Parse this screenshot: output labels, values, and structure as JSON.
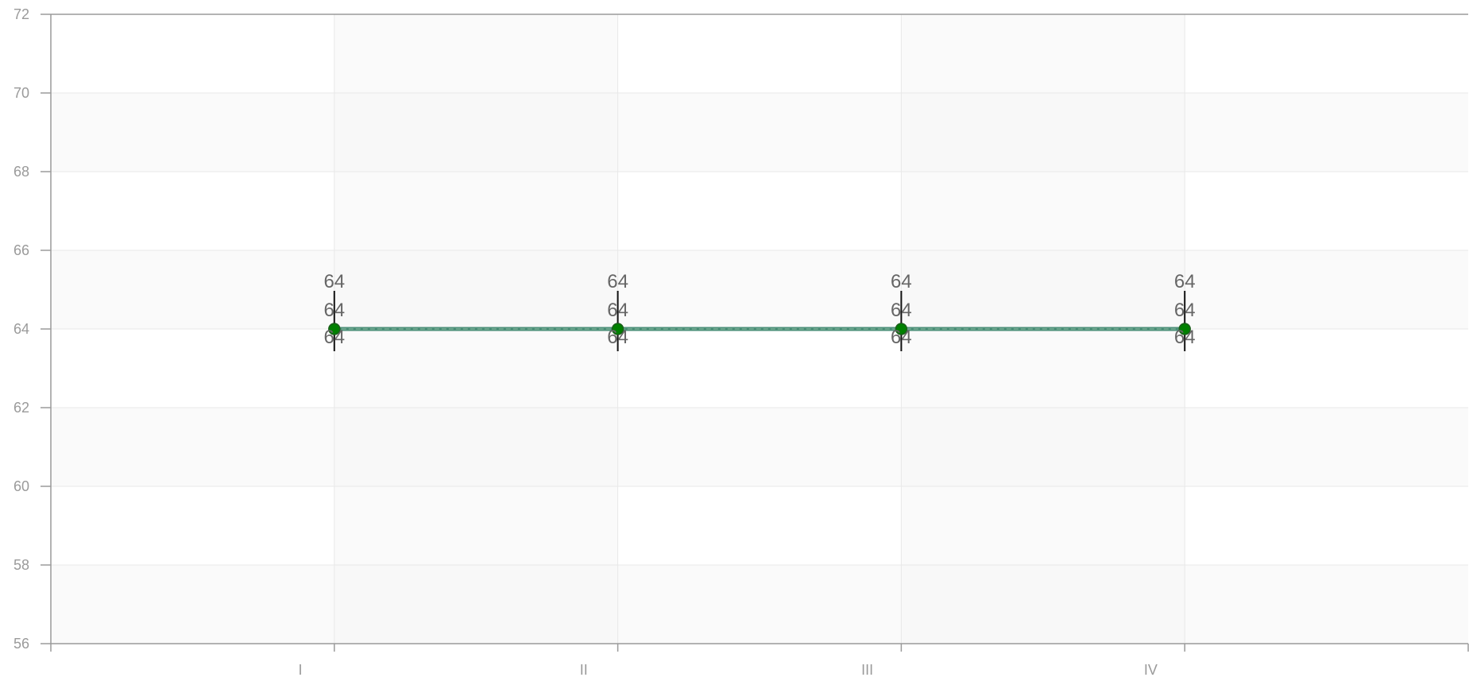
{
  "chart_data": {
    "type": "line",
    "categories": [
      "I",
      "II",
      "III",
      "IV"
    ],
    "series": [
      {
        "values": [
          64,
          64,
          64,
          64
        ],
        "upper_values": [
          64,
          64,
          64,
          64
        ],
        "lower_values": [
          64,
          64,
          64,
          64
        ]
      }
    ],
    "data_label_rows": [
      [
        "64",
        "64",
        "64",
        "64"
      ],
      [
        "64",
        "64",
        "64",
        "64"
      ],
      [
        "64",
        "64",
        "64",
        "64"
      ]
    ],
    "title": "",
    "xlabel": "",
    "ylabel": "",
    "ylim": [
      56,
      72
    ],
    "yticks": [
      56,
      58,
      60,
      62,
      64,
      66,
      68,
      70,
      72
    ],
    "grid": true,
    "legend": "none",
    "colors": {
      "line": "#4b8f78",
      "marker": "#008000",
      "error_bar": "#111111",
      "axis": "#9a9a9a",
      "grid": "#e8e8e8",
      "band_1": "#fafafa",
      "band_2": "#f5f5f5"
    }
  }
}
